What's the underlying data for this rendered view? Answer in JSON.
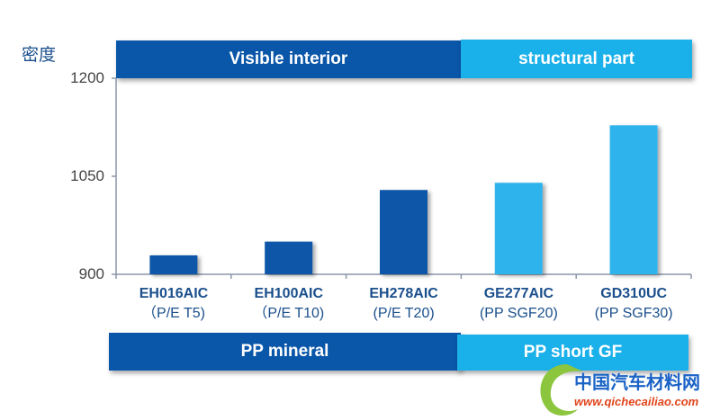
{
  "chart_data": {
    "type": "bar",
    "ylabel": "密度",
    "ylim": [
      900,
      1200
    ],
    "yticks": [
      "1200",
      "1050",
      "900"
    ],
    "grid": false,
    "categories": [
      {
        "name": "EH016AIC",
        "sub": "（P/E T5)"
      },
      {
        "name": "EH100AIC",
        "sub": "（P/E T10)"
      },
      {
        "name": "EH278AIC",
        "sub": "(P/E T20)"
      },
      {
        "name": "GE277AIC",
        "sub": "(PP SGF20)"
      },
      {
        "name": "GD310UC",
        "sub": "(PP SGF30)"
      }
    ],
    "values": [
      929,
      950,
      1029,
      1040,
      1128
    ],
    "bar_colors": [
      "#0a56a8",
      "#0a56a8",
      "#0a56a8",
      "#2eb3ec",
      "#2eb3ec"
    ],
    "top_groups": [
      {
        "label": "Visible interior",
        "color": "#0a56a8"
      },
      {
        "label": "structural part",
        "color": "#1ab0ea"
      }
    ],
    "bottom_groups": [
      {
        "label": "PP mineral",
        "color": "#0a56a8"
      },
      {
        "label": "PP short GF",
        "color": "#1ab0ea"
      }
    ]
  },
  "watermark": {
    "name": "中国汽车材料网",
    "url": "www.qichecailiao.com"
  }
}
